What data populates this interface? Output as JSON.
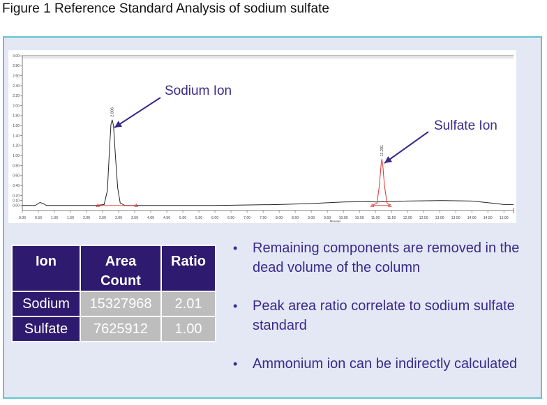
{
  "figure_title": "Figure 1 Reference Standard Analysis of sodium sulfate",
  "colors": {
    "panel_border": "#5fc6cf",
    "panel_bg": "#e4e7f4",
    "header": "#2e1a6e",
    "cell_gray": "#bdbdbd",
    "annotation": "#3a2a8c",
    "trace_black": "#222222",
    "trace_red": "#e03030"
  },
  "chart_data": {
    "type": "line",
    "xlabel": "Minutes",
    "ylabel": "",
    "xlim": [
      0.0,
      15.3
    ],
    "ylim": [
      -0.1,
      3.0
    ],
    "x_ticks": [
      "0.00",
      "0.50",
      "1.00",
      "1.50",
      "2.00",
      "2.50",
      "3.00",
      "3.50",
      "4.00",
      "4.50",
      "5.00",
      "5.50",
      "6.00",
      "6.50",
      "7.00",
      "7.50",
      "8.00",
      "8.50",
      "9.00",
      "9.50",
      "10.00",
      "10.50",
      "11.00",
      "11.50",
      "12.00",
      "12.50",
      "13.00",
      "13.50",
      "14.00",
      "14.50",
      "15.00"
    ],
    "y_ticks": [
      "0.00",
      "0.10",
      "0.20",
      "0.40",
      "0.60",
      "0.80",
      "1.00",
      "1.20",
      "1.40",
      "1.60",
      "1.80",
      "2.00",
      "2.20",
      "2.40",
      "2.60",
      "2.80",
      "3.00"
    ],
    "series": [
      {
        "name": "Sodium Ion",
        "color": "#222222",
        "x": [
          0.0,
          0.4,
          0.55,
          0.65,
          0.75,
          0.9,
          2.3,
          2.55,
          2.65,
          2.72,
          2.76,
          2.8,
          2.84,
          2.9,
          2.97,
          3.05,
          3.2,
          4.0,
          6.0,
          8.0,
          9.0,
          10.0,
          10.8,
          11.0,
          11.5,
          12.0,
          13.0,
          14.0,
          14.6,
          15.0,
          15.3
        ],
        "y": [
          0.0,
          0.0,
          0.06,
          0.04,
          0.0,
          0.0,
          0.0,
          0.02,
          0.3,
          1.2,
          1.62,
          1.72,
          1.6,
          1.0,
          0.35,
          0.05,
          0.0,
          0.0,
          0.0,
          0.02,
          0.04,
          0.07,
          0.08,
          0.07,
          0.08,
          0.09,
          0.1,
          0.09,
          0.05,
          0.02,
          0.02
        ]
      },
      {
        "name": "Sulfate Ion",
        "color": "#e03030",
        "x": [
          10.9,
          11.05,
          11.12,
          11.18,
          11.2,
          11.23,
          11.28,
          11.36,
          11.45
        ],
        "y": [
          0.0,
          0.05,
          0.4,
          0.85,
          0.93,
          0.8,
          0.4,
          0.05,
          0.0
        ]
      }
    ],
    "peak_labels": [
      {
        "x": 2.806,
        "y": 1.72,
        "text": "2.806"
      },
      {
        "x": 11.201,
        "y": 0.93,
        "text": "11.201"
      }
    ],
    "baseline_markers": [
      {
        "x1": 2.35,
        "x2": 3.55
      },
      {
        "x1": 10.9,
        "x2": 11.45
      }
    ],
    "annotations": [
      {
        "text": "Sodium Ion",
        "target_x": 2.806,
        "target_y": 1.72
      },
      {
        "text": "Sulfate Ion",
        "target_x": 11.201,
        "target_y": 0.93
      }
    ]
  },
  "table": {
    "headers": [
      "Ion",
      "Area\nCount",
      "Ratio"
    ],
    "header_area_line1": "Area",
    "header_area_line2": "Count",
    "rows": [
      {
        "ion": "Sodium",
        "area": "15327968",
        "ratio": "2.01"
      },
      {
        "ion": "Sulfate",
        "area": "7625912",
        "ratio": "1.00"
      }
    ]
  },
  "bullets": [
    "Remaining components are removed in the dead volume of the column",
    "Peak area ratio correlate to sodium sulfate standard",
    "Ammonium ion can be indirectly calculated"
  ]
}
